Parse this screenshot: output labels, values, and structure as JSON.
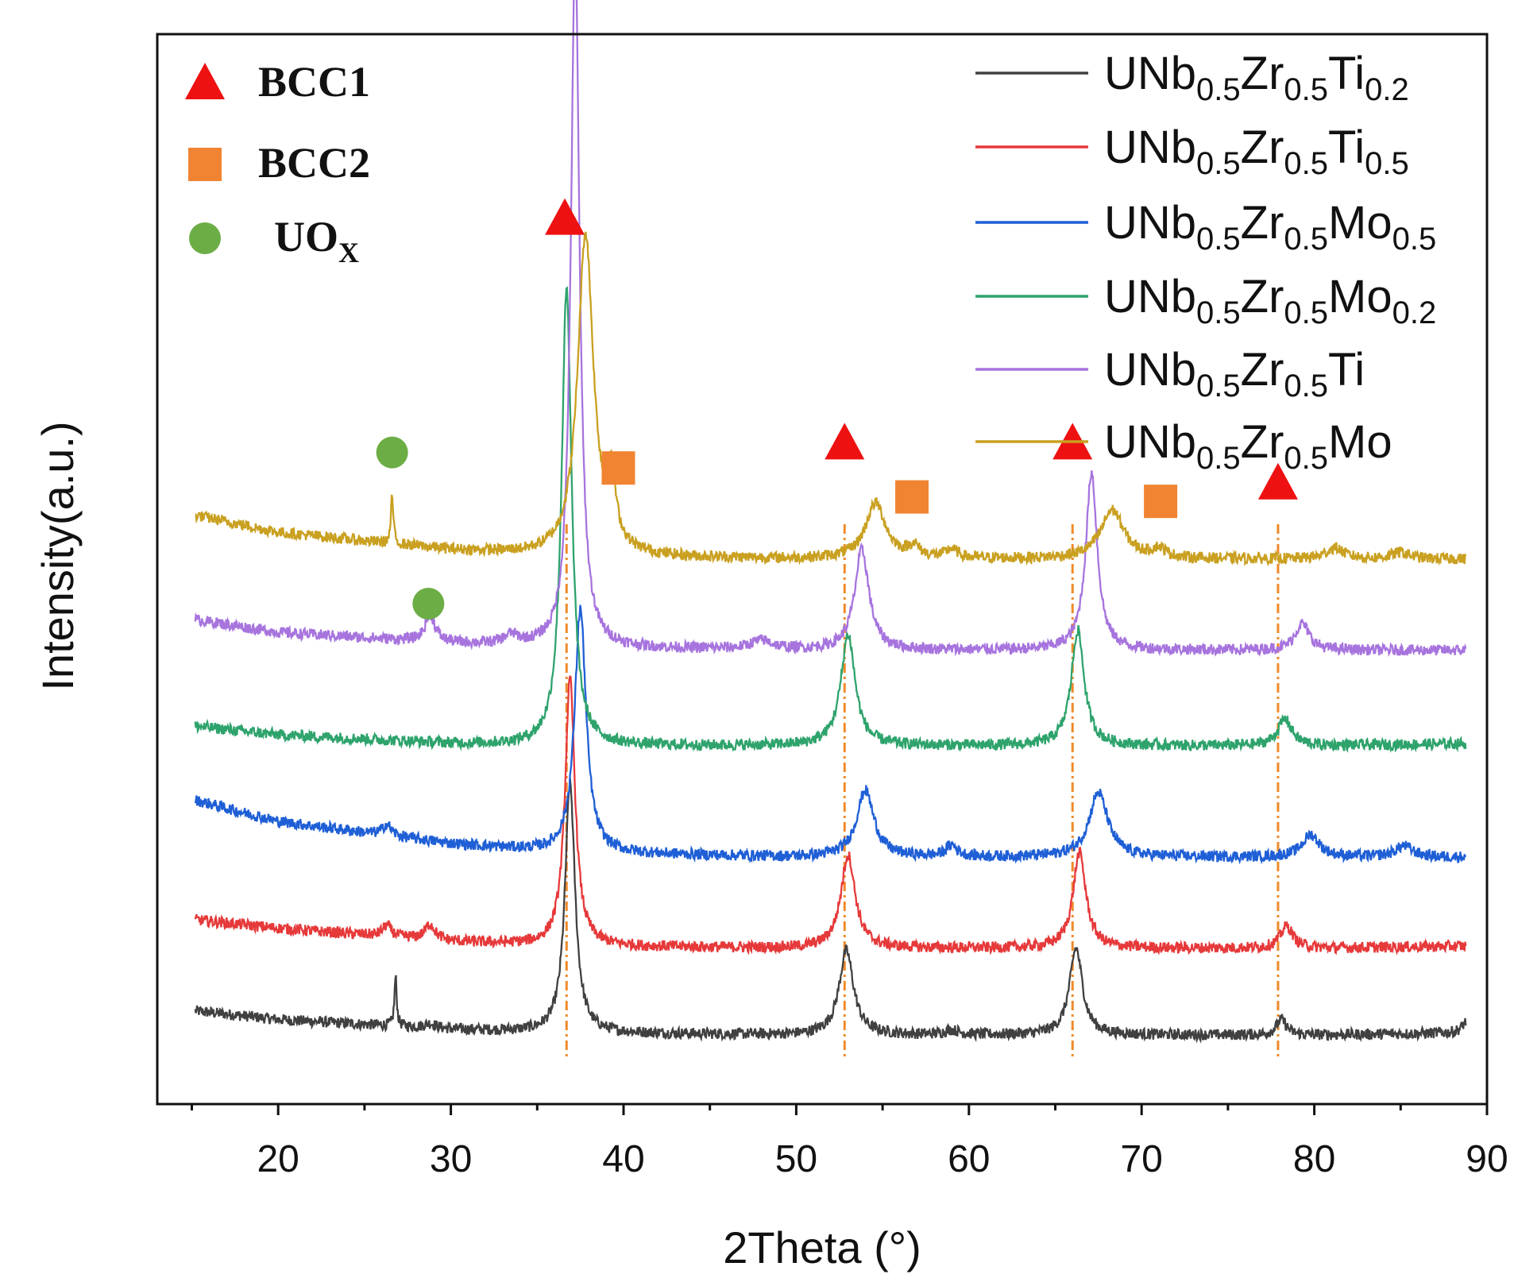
{
  "chart_data": {
    "type": "line",
    "title": "",
    "xlabel": "2Theta (°)",
    "ylabel": "Intensity(a.u.)",
    "xlim": [
      13,
      90
    ],
    "xticks": [
      20,
      30,
      40,
      50,
      60,
      70,
      80,
      90
    ],
    "yticks_visible": false,
    "grid": false,
    "legend_position": "top-right",
    "series": [
      {
        "name": "UNb0.5Zr0.5Ti0.2",
        "label": {
          "base": "UNb",
          "s1": "0.5",
          "m": "Zr",
          "s2": "0.5",
          "el": "Ti",
          "s3": "0.2"
        },
        "color": "#404040",
        "baseline": [
          [
            15,
            0.17
          ],
          [
            20,
            0.13
          ],
          [
            30,
            0.085
          ],
          [
            36,
            0.07
          ],
          [
            50,
            0.06
          ],
          [
            60,
            0.06
          ],
          [
            70,
            0.06
          ],
          [
            80,
            0.06
          ],
          [
            88.5,
            0.07
          ]
        ],
        "peaks": [
          [
            26.8,
            0.22,
            0.08
          ],
          [
            28.8,
            0.02,
            0.4
          ],
          [
            36.9,
            1.12,
            0.35
          ],
          [
            52.9,
            0.38,
            0.5
          ],
          [
            59,
            0.02,
            0.5
          ],
          [
            66.2,
            0.39,
            0.45
          ],
          [
            78.1,
            0.07,
            0.35
          ],
          [
            88.8,
            0.05,
            0.3
          ]
        ]
      },
      {
        "name": "UNb0.5Zr0.5Ti0.5",
        "label": {
          "base": "UNb",
          "s1": "0.5",
          "m": "Zr",
          "s2": "0.5",
          "el": "Ti",
          "s3": "0.5"
        },
        "color": "#e6393a",
        "baseline": [
          [
            15,
            0.58
          ],
          [
            20,
            0.54
          ],
          [
            30,
            0.48
          ],
          [
            36,
            0.46
          ],
          [
            50,
            0.45
          ],
          [
            60,
            0.45
          ],
          [
            70,
            0.45
          ],
          [
            80,
            0.45
          ],
          [
            88.5,
            0.46
          ]
        ],
        "peaks": [
          [
            26.3,
            0.05,
            0.3
          ],
          [
            28.8,
            0.07,
            0.35
          ],
          [
            36.9,
            1.2,
            0.35
          ],
          [
            53.0,
            0.42,
            0.5
          ],
          [
            66.4,
            0.43,
            0.45
          ],
          [
            78.4,
            0.1,
            0.45
          ]
        ]
      },
      {
        "name": "UNb0.5Zr0.5Mo0.5",
        "label": {
          "base": "UNb",
          "s1": "0.5",
          "m": "Zr",
          "s2": "0.5",
          "el": "Mo",
          "s3": "0.5"
        },
        "color": "#1f5fd6",
        "baseline": [
          [
            15,
            1.12
          ],
          [
            20,
            1.02
          ],
          [
            30,
            0.92
          ],
          [
            36,
            0.88
          ],
          [
            50,
            0.86
          ],
          [
            60,
            0.86
          ],
          [
            70,
            0.86
          ],
          [
            80,
            0.86
          ],
          [
            88.5,
            0.86
          ]
        ],
        "peaks": [
          [
            26.3,
            0.05,
            0.3
          ],
          [
            37.5,
            1.1,
            0.4
          ],
          [
            54.0,
            0.3,
            0.6
          ],
          [
            59,
            0.05,
            0.4
          ],
          [
            67.5,
            0.29,
            0.65
          ],
          [
            79.8,
            0.1,
            0.6
          ],
          [
            85.2,
            0.05,
            0.6
          ]
        ]
      },
      {
        "name": "UNb0.5Zr0.5Mo0.2",
        "label": {
          "base": "UNb",
          "s1": "0.5",
          "m": "Zr",
          "s2": "0.5",
          "el": "Mo",
          "s3": "0.2"
        },
        "color": "#2ea36c",
        "baseline": [
          [
            15,
            1.45
          ],
          [
            20,
            1.41
          ],
          [
            30,
            1.37
          ],
          [
            36,
            1.36
          ],
          [
            50,
            1.36
          ],
          [
            60,
            1.36
          ],
          [
            70,
            1.36
          ],
          [
            80,
            1.36
          ],
          [
            88.5,
            1.37
          ]
        ],
        "peaks": [
          [
            36.7,
            2.05,
            0.35
          ],
          [
            53.0,
            0.5,
            0.5
          ],
          [
            66.3,
            0.52,
            0.45
          ],
          [
            78.3,
            0.12,
            0.5
          ]
        ]
      },
      {
        "name": "UNb0.5Zr0.5Ti",
        "label": {
          "base": "UNb",
          "s1": "0.5",
          "m": "Zr",
          "s2": "0.5",
          "el": "Ti",
          "s3": ""
        },
        "color": "#a774de",
        "baseline": [
          [
            15,
            1.93
          ],
          [
            20,
            1.87
          ],
          [
            30,
            1.82
          ],
          [
            36,
            1.8
          ],
          [
            50,
            1.79
          ],
          [
            60,
            1.79
          ],
          [
            70,
            1.79
          ],
          [
            80,
            1.79
          ],
          [
            88.5,
            1.79
          ]
        ],
        "peaks": [
          [
            28.8,
            0.12,
            0.35
          ],
          [
            33.5,
            0.04,
            0.5
          ],
          [
            37.2,
            3.15,
            0.3
          ],
          [
            48,
            0.04,
            0.8
          ],
          [
            53.8,
            0.45,
            0.5
          ],
          [
            67.1,
            0.8,
            0.4
          ],
          [
            79.3,
            0.12,
            0.5
          ]
        ]
      },
      {
        "name": "UNb0.5Zr0.5Mo",
        "label": {
          "base": "UNb",
          "s1": "0.5",
          "m": "Zr",
          "s2": "0.5",
          "el": "Mo",
          "s3": ""
        },
        "color": "#c9a020",
        "baseline": [
          [
            15,
            2.4
          ],
          [
            20,
            2.32
          ],
          [
            30,
            2.24
          ],
          [
            36,
            2.21
          ],
          [
            50,
            2.2
          ],
          [
            60,
            2.2
          ],
          [
            70,
            2.2
          ],
          [
            80,
            2.2
          ],
          [
            88.5,
            2.2
          ]
        ],
        "peaks": [
          [
            26.6,
            0.22,
            0.08
          ],
          [
            37.8,
            1.45,
            0.55
          ],
          [
            39.3,
            0.28,
            0.3
          ],
          [
            54.6,
            0.25,
            0.7
          ],
          [
            56.8,
            0.05,
            0.4
          ],
          [
            59,
            0.04,
            0.4
          ],
          [
            68.3,
            0.22,
            0.8
          ],
          [
            71,
            0.04,
            0.5
          ],
          [
            81.2,
            0.05,
            0.6
          ],
          [
            85,
            0.03,
            0.6
          ]
        ]
      }
    ],
    "reference_lines": [
      36.7,
      52.8,
      66.0,
      77.9
    ],
    "phase_markers": [
      {
        "phase": "BCC1",
        "shape": "triangle",
        "x": [
          36.6,
          52.8,
          66.0,
          77.9
        ],
        "y": [
          3.73,
          2.72,
          2.72,
          2.54
        ]
      },
      {
        "phase": "BCC2",
        "shape": "square",
        "x": [
          39.7,
          56.7,
          71.1
        ],
        "y": [
          2.61,
          2.48,
          2.46
        ]
      },
      {
        "phase": "UOx",
        "shape": "circle",
        "x": [
          26.6,
          28.7
        ],
        "y": [
          2.68,
          2.0
        ]
      }
    ],
    "marker_legend": [
      {
        "shape": "triangle",
        "text": "BCC1",
        "sub": "",
        "color": "#ee1111"
      },
      {
        "shape": "square",
        "text": "BCC2",
        "sub": "",
        "color": "#f08432"
      },
      {
        "shape": "circle",
        "text": "UO",
        "sub": "X",
        "color": "#6cae45"
      }
    ],
    "colors": {
      "triangle": "#ee1111",
      "square": "#f08432",
      "circle": "#6cae45",
      "refline": "#f08a2a"
    }
  }
}
